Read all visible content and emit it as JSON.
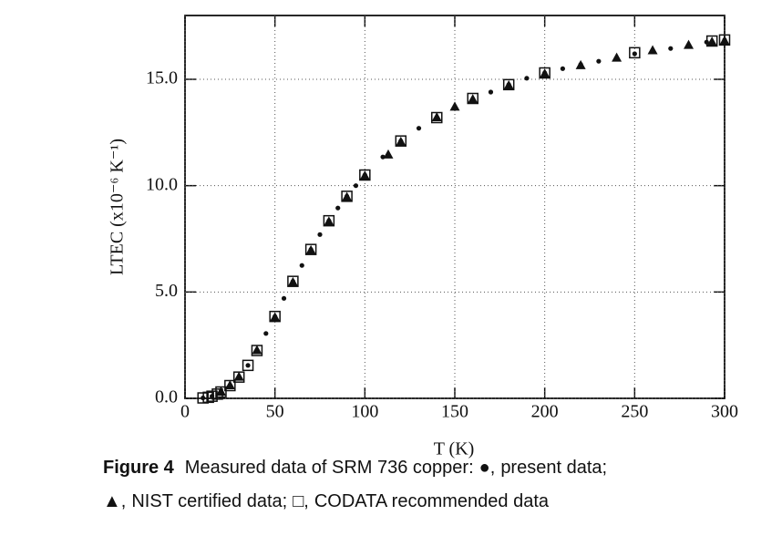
{
  "chart_data": {
    "type": "scatter",
    "x_label": "T (K)",
    "y_label": "LTEC (x10⁻⁶ K⁻¹)",
    "xlim": [
      0,
      300
    ],
    "ylim": [
      0,
      18
    ],
    "xticks": [
      0,
      50,
      100,
      150,
      200,
      250,
      300
    ],
    "yticks": [
      {
        "value": 0,
        "label": "0.0"
      },
      {
        "value": 5,
        "label": "5.0"
      },
      {
        "value": 10,
        "label": "10.0"
      },
      {
        "value": 15,
        "label": "15.0"
      }
    ],
    "grid": true,
    "figure_label": "Figure 4",
    "caption": "Measured data of SRM 736 copper:",
    "caption_punctuation": [
      ",",
      ";"
    ],
    "series": [
      {
        "name": "present data",
        "symbol": "●",
        "marker": "circle",
        "color": "#111111",
        "x": [
          10,
          15,
          20,
          25,
          30,
          35,
          40,
          45,
          50,
          55,
          60,
          65,
          70,
          75,
          80,
          85,
          90,
          95,
          100,
          110,
          120,
          130,
          140,
          150,
          160,
          170,
          180,
          190,
          200,
          210,
          220,
          230,
          240,
          250,
          260,
          270,
          280,
          290,
          300
        ],
        "values": [
          0.02,
          0.1,
          0.3,
          0.6,
          1.0,
          1.55,
          2.25,
          3.05,
          3.85,
          4.7,
          5.5,
          6.25,
          7.0,
          7.7,
          8.35,
          8.95,
          9.5,
          10.0,
          10.5,
          11.35,
          12.1,
          12.7,
          13.2,
          13.65,
          14.05,
          14.4,
          14.75,
          15.05,
          15.3,
          15.5,
          15.7,
          15.85,
          16.0,
          16.2,
          16.35,
          16.45,
          16.6,
          16.75,
          16.85
        ]
      },
      {
        "name": "NIST certified data",
        "symbol": "▲",
        "marker": "triangle",
        "color": "#111111",
        "x": [
          20,
          25,
          30,
          40,
          50,
          60,
          70,
          80,
          90,
          100,
          113,
          120,
          140,
          150,
          160,
          180,
          200,
          220,
          240,
          260,
          280,
          293,
          300
        ],
        "values": [
          0.3,
          0.6,
          1.0,
          2.25,
          3.8,
          5.45,
          6.95,
          8.3,
          9.45,
          10.45,
          11.45,
          12.05,
          13.2,
          13.7,
          14.05,
          14.7,
          15.25,
          15.65,
          16.0,
          16.35,
          16.6,
          16.75,
          16.8
        ]
      },
      {
        "name": "CODATA recommended data",
        "symbol": "□",
        "marker": "square",
        "color": "#111111",
        "x": [
          10,
          13,
          15,
          18,
          20,
          25,
          30,
          35,
          40,
          50,
          60,
          70,
          80,
          90,
          100,
          120,
          140,
          160,
          180,
          200,
          250,
          293,
          300
        ],
        "values": [
          0.02,
          0.05,
          0.1,
          0.2,
          0.3,
          0.6,
          1.0,
          1.55,
          2.25,
          3.85,
          5.5,
          7.0,
          8.35,
          9.5,
          10.5,
          12.1,
          13.2,
          14.1,
          14.75,
          15.3,
          16.25,
          16.8,
          16.85
        ]
      }
    ]
  }
}
